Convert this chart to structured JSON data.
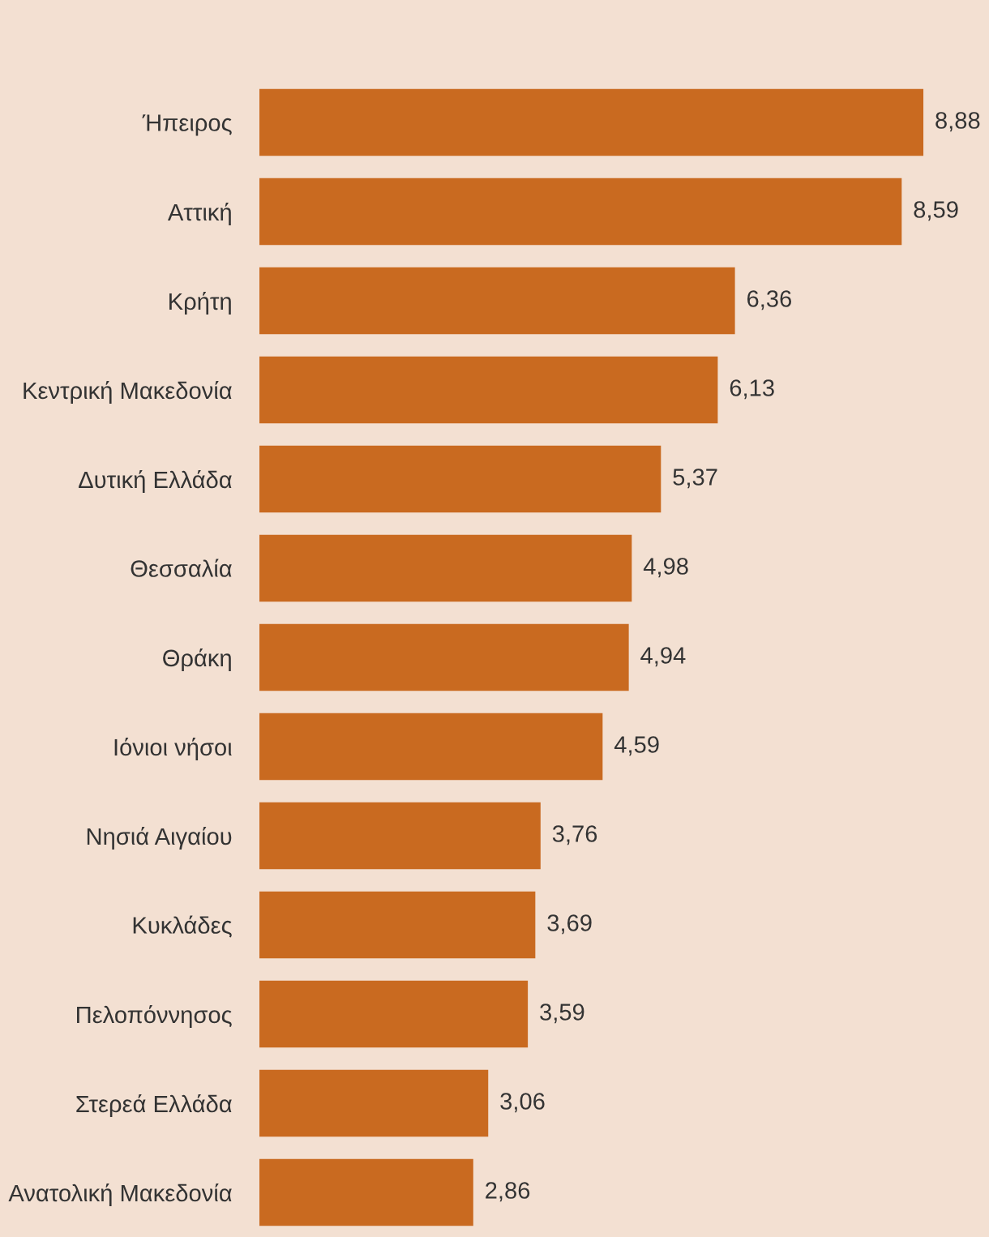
{
  "chart_data": {
    "type": "bar",
    "orientation": "horizontal",
    "categories": [
      "Ήπειρος",
      "Αττική",
      "Κρήτη",
      "Κεντρική Μακεδονία",
      "Δυτική Ελλάδα",
      "Θεσσαλία",
      "Θράκη",
      "Ιόνιοι νήσοι",
      "Νησιά Αιγαίου",
      "Κυκλάδες",
      "Πελοπόννησος",
      "Στερεά Ελλάδα",
      "Ανατολική Μακεδονία"
    ],
    "values": [
      8.88,
      8.59,
      6.36,
      6.13,
      5.37,
      4.98,
      4.94,
      4.59,
      3.76,
      3.69,
      3.59,
      3.06,
      2.86
    ],
    "value_labels": [
      "8,88",
      "8,59",
      "6,36",
      "6,13",
      "5,37",
      "4,98",
      "4,94",
      "4,59",
      "3,76",
      "3,69",
      "3,59",
      "3,06",
      "2,86"
    ],
    "color": "#c96a20",
    "grid": false,
    "legend": false
  }
}
